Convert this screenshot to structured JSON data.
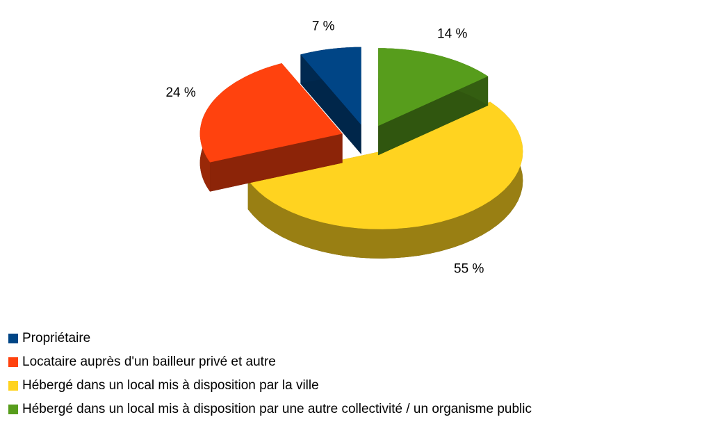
{
  "chart_data": {
    "type": "pie3d",
    "categories": [
      "Propriétaire",
      "Locataire auprès d'un bailleur privé et autre",
      "Hébergé dans un local mis à disposition par la ville",
      "Hébergé dans un local mis à disposition par une autre collectivité / un organisme public"
    ],
    "values": [
      7,
      24,
      55,
      14
    ],
    "value_labels": [
      "7 %",
      "24 %",
      "55 %",
      "14 %"
    ],
    "colors": [
      "#004586",
      "#ff420e",
      "#ffd320",
      "#579d1c"
    ],
    "legend": "bottom-left"
  }
}
